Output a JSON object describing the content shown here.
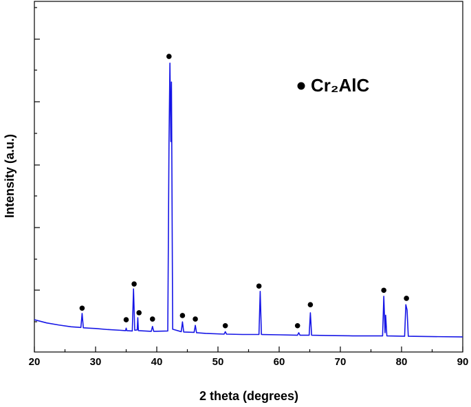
{
  "chart_data": {
    "type": "line",
    "x_label": "2 theta (degrees)",
    "y_label": "Intensity (a.u.)",
    "xlim": [
      20,
      90
    ],
    "xticks": [
      20,
      30,
      40,
      50,
      60,
      70,
      80,
      90
    ],
    "ylim": [
      0,
      100
    ],
    "x": [
      20,
      22,
      24,
      26,
      27.6,
      27.8,
      28.0,
      30,
      32,
      34,
      34.9,
      35.0,
      35.1,
      36.0,
      36.2,
      36.4,
      36.8,
      36.9,
      37.0,
      39.1,
      39.3,
      39.5,
      41.8,
      42.0,
      42.15,
      42.3,
      42.4,
      42.6,
      44.0,
      44.2,
      44.4,
      46.1,
      46.3,
      46.5,
      48,
      51.0,
      51.2,
      51.4,
      54,
      56.7,
      56.9,
      57.1,
      60,
      63.0,
      63.2,
      63.4,
      64.9,
      65.1,
      65.3,
      68,
      72,
      76.9,
      77.1,
      77.3,
      77.4,
      77.6,
      80.5,
      80.7,
      80.9,
      81.1,
      85,
      90
    ],
    "series": [
      {
        "color": "#1515e6",
        "values": [
          9.2,
          8.3,
          7.7,
          7.2,
          7.0,
          11.0,
          6.9,
          6.7,
          6.4,
          6.2,
          6.1,
          6.8,
          6.1,
          6.0,
          18.0,
          6.2,
          6.3,
          9.8,
          6.1,
          5.9,
          7.3,
          5.9,
          6.0,
          60,
          82.4,
          60,
          77,
          6.5,
          5.8,
          8.6,
          5.7,
          5.6,
          7.6,
          5.5,
          5.3,
          5.1,
          5.8,
          5.1,
          5.0,
          5.0,
          17.3,
          5.0,
          4.9,
          4.8,
          5.5,
          4.8,
          4.8,
          11.2,
          4.8,
          4.7,
          4.6,
          4.6,
          15.9,
          5.5,
          10.5,
          4.6,
          4.5,
          13.5,
          12,
          4.5,
          4.4,
          4.3
        ]
      }
    ],
    "markers": {
      "name": "Cr₂AlC",
      "color": "#000000",
      "x": [
        27.8,
        35.0,
        36.3,
        37.1,
        39.3,
        42.0,
        44.2,
        46.3,
        51.2,
        56.7,
        63.0,
        65.1,
        77.1,
        80.8
      ],
      "values": [
        12.5,
        9.2,
        19.4,
        11.2,
        9.4,
        84.3,
        10.4,
        9.4,
        7.5,
        18.8,
        7.5,
        13.5,
        17.6,
        15.3
      ]
    }
  }
}
